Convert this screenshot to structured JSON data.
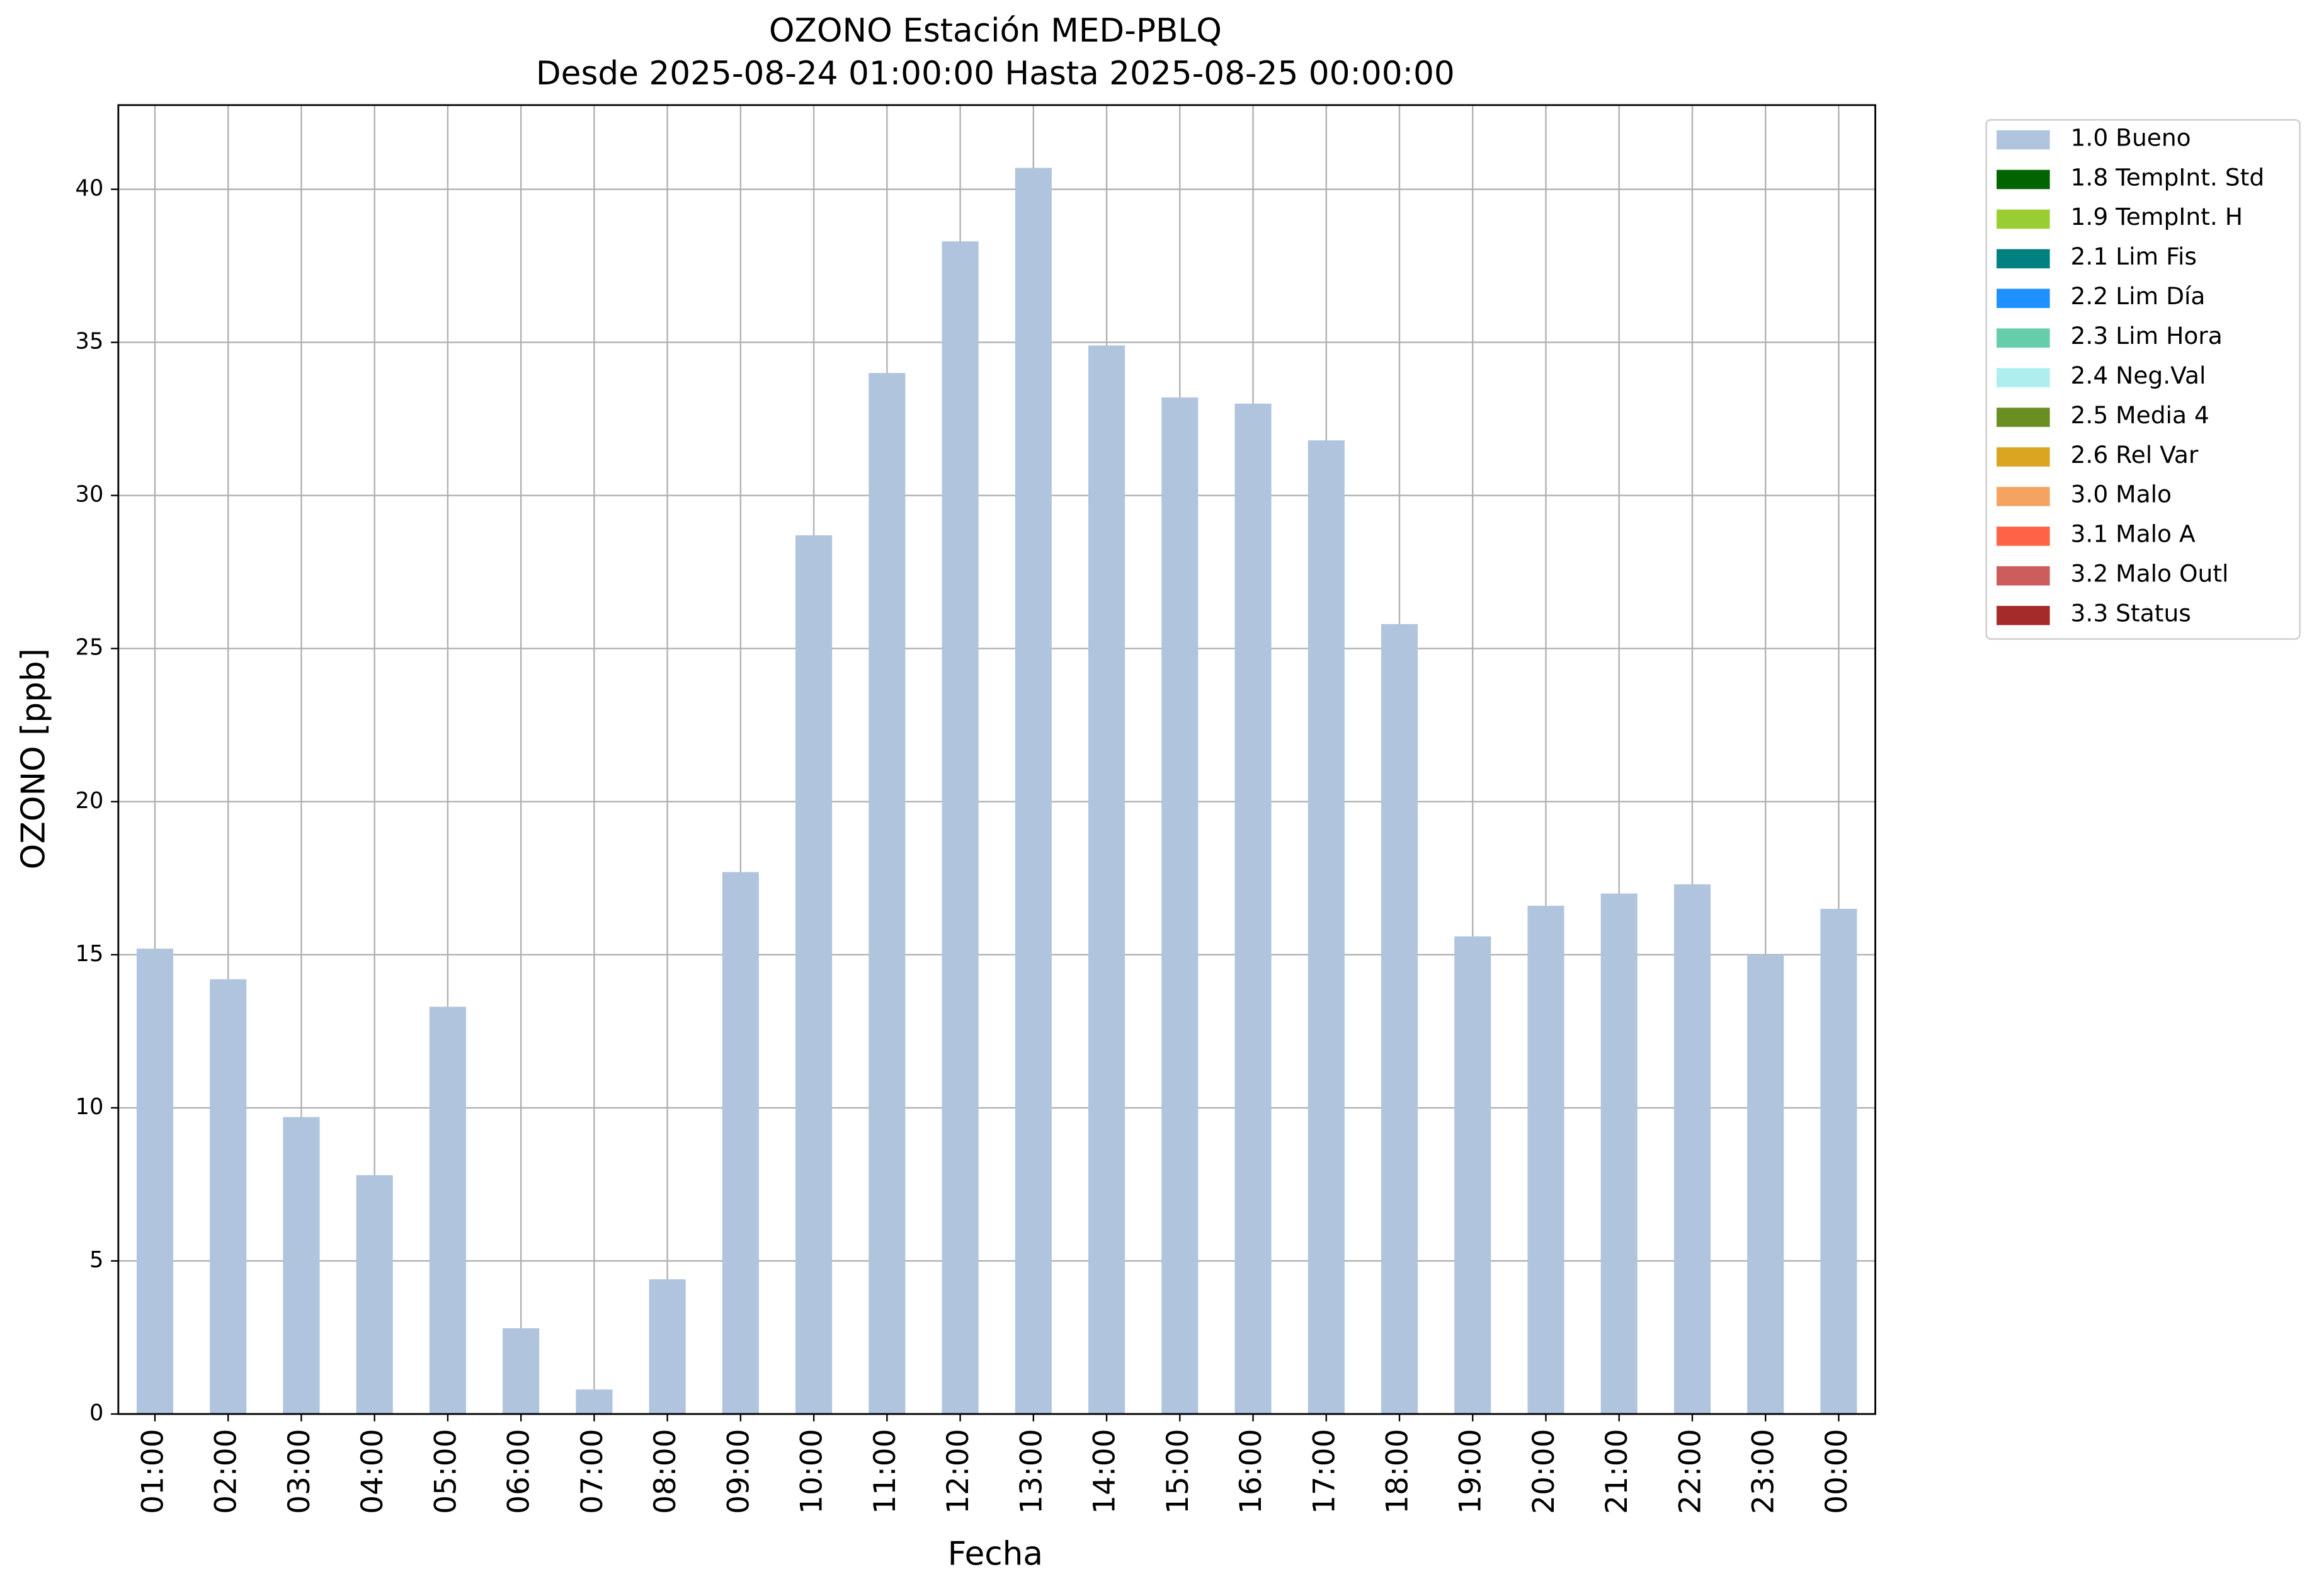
{
  "chart_data": {
    "type": "bar",
    "stacked": true,
    "title": "OZONO Estación MED-PBLQ",
    "subtitle": "Desde 2025-08-24 01:00:00 Hasta 2025-08-25 00:00:00",
    "x_label": "Fecha",
    "y_label": "OZONO [ppb]",
    "categories": [
      "01:00",
      "02:00",
      "03:00",
      "04:00",
      "05:00",
      "06:00",
      "07:00",
      "08:00",
      "09:00",
      "10:00",
      "11:00",
      "12:00",
      "13:00",
      "14:00",
      "15:00",
      "16:00",
      "17:00",
      "18:00",
      "19:00",
      "20:00",
      "21:00",
      "22:00",
      "23:00",
      "00:00"
    ],
    "series": [
      {
        "name": "1.0 Bueno",
        "color": "#b0c4de",
        "values": [
          15.2,
          14.2,
          9.7,
          7.8,
          13.3,
          2.8,
          0.8,
          4.4,
          17.7,
          28.7,
          34.0,
          38.3,
          40.7,
          34.9,
          33.2,
          33.0,
          31.8,
          25.8,
          15.6,
          16.6,
          17.0,
          17.3,
          15.0,
          16.5
        ]
      },
      {
        "name": "1.8 TempInt. Std",
        "color": "#006400",
        "values": [
          0,
          0,
          0,
          0,
          0,
          0,
          0,
          0,
          0,
          0,
          0,
          0,
          0,
          0,
          0,
          0,
          0,
          0,
          0,
          0,
          0,
          0,
          0,
          0
        ]
      },
      {
        "name": "1.9 TempInt. H",
        "color": "#9acd32",
        "values": [
          0,
          0,
          0,
          0,
          0,
          0,
          0,
          0,
          0,
          0,
          0,
          0,
          0,
          0,
          0,
          0,
          0,
          0,
          0,
          0,
          0,
          0,
          0,
          0
        ]
      },
      {
        "name": "2.1 Lim Fis",
        "color": "#008080",
        "values": [
          0,
          0,
          0,
          0,
          0,
          0,
          0,
          0,
          0,
          0,
          0,
          0,
          0,
          0,
          0,
          0,
          0,
          0,
          0,
          0,
          0,
          0,
          0,
          0
        ]
      },
      {
        "name": "2.2 Lim Día",
        "color": "#1e90ff",
        "values": [
          0,
          0,
          0,
          0,
          0,
          0,
          0,
          0,
          0,
          0,
          0,
          0,
          0,
          0,
          0,
          0,
          0,
          0,
          0,
          0,
          0,
          0,
          0,
          0
        ]
      },
      {
        "name": "2.3 Lim Hora",
        "color": "#66cdaa",
        "values": [
          0,
          0,
          0,
          0,
          0,
          0,
          0,
          0,
          0,
          0,
          0,
          0,
          0,
          0,
          0,
          0,
          0,
          0,
          0,
          0,
          0,
          0,
          0,
          0
        ]
      },
      {
        "name": "2.4 Neg.Val",
        "color": "#afeeee",
        "values": [
          0,
          0,
          0,
          0,
          0,
          0,
          0,
          0,
          0,
          0,
          0,
          0,
          0,
          0,
          0,
          0,
          0,
          0,
          0,
          0,
          0,
          0,
          0,
          0
        ]
      },
      {
        "name": "2.5 Media 4",
        "color": "#6b8e23",
        "values": [
          0,
          0,
          0,
          0,
          0,
          0,
          0,
          0,
          0,
          0,
          0,
          0,
          0,
          0,
          0,
          0,
          0,
          0,
          0,
          0,
          0,
          0,
          0,
          0
        ]
      },
      {
        "name": "2.6 Rel Var",
        "color": "#daa520",
        "values": [
          0,
          0,
          0,
          0,
          0,
          0,
          0,
          0,
          0,
          0,
          0,
          0,
          0,
          0,
          0,
          0,
          0,
          0,
          0,
          0,
          0,
          0,
          0,
          0
        ]
      },
      {
        "name": "3.0 Malo",
        "color": "#f4a460",
        "values": [
          0,
          0,
          0,
          0,
          0,
          0,
          0,
          0,
          0,
          0,
          0,
          0,
          0,
          0,
          0,
          0,
          0,
          0,
          0,
          0,
          0,
          0,
          0,
          0
        ]
      },
      {
        "name": "3.1 Malo A",
        "color": "#ff6347",
        "values": [
          0,
          0,
          0,
          0,
          0,
          0,
          0,
          0,
          0,
          0,
          0,
          0,
          0,
          0,
          0,
          0,
          0,
          0,
          0,
          0,
          0,
          0,
          0,
          0
        ]
      },
      {
        "name": "3.2 Malo Outl",
        "color": "#cd5c5c",
        "values": [
          0,
          0,
          0,
          0,
          0,
          0,
          0,
          0,
          0,
          0,
          0,
          0,
          0,
          0,
          0,
          0,
          0,
          0,
          0,
          0,
          0,
          0,
          0,
          0
        ]
      },
      {
        "name": "3.3 Status",
        "color": "#a52a2a",
        "values": [
          0,
          0,
          0,
          0,
          0,
          0,
          0,
          0,
          0,
          0,
          0,
          0,
          0,
          0,
          0,
          0,
          0,
          0,
          0,
          0,
          0,
          0,
          0,
          0
        ]
      }
    ],
    "ylim": [
      0,
      42.75
    ],
    "yticks": [
      0,
      5,
      10,
      15,
      20,
      25,
      30,
      35,
      40
    ],
    "grid": true,
    "legend": "outside-upper-right"
  }
}
